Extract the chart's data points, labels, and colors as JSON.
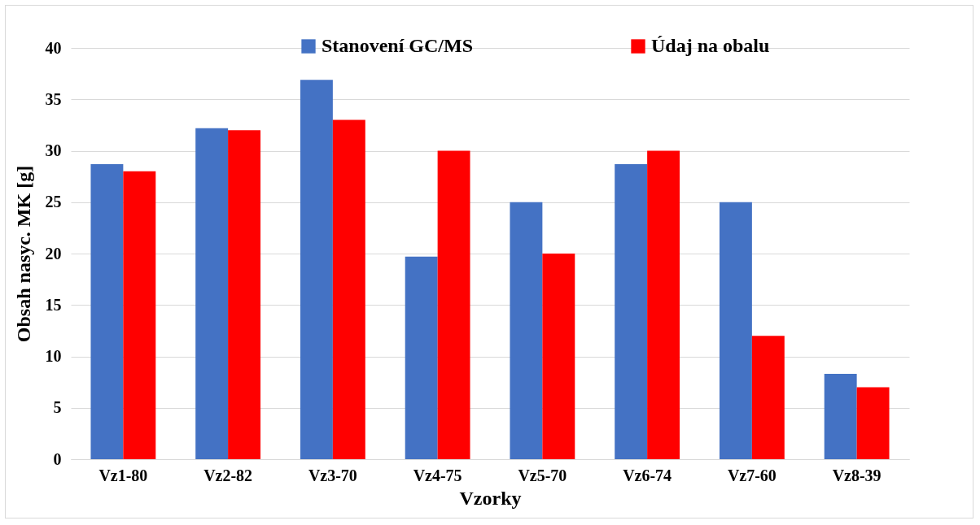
{
  "chart_data": {
    "type": "bar",
    "xlabel": "Vzorky",
    "ylabel": "Obsah nasyc. MK [g]",
    "categories": [
      "Vz1-80",
      "Vz2-82",
      "Vz3-70",
      "Vz4-75",
      "Vz5-70",
      "Vz6-74",
      "Vz7-60",
      "Vz8-39"
    ],
    "series": [
      {
        "name": "Stanovení GC/MS",
        "color": "#4472c4",
        "values": [
          28.7,
          32.2,
          36.9,
          19.7,
          25,
          28.7,
          25,
          8.3
        ]
      },
      {
        "name": "Údaj na obalu",
        "color": "#ff0000",
        "values": [
          28,
          32,
          33,
          30,
          20,
          30,
          12,
          7
        ]
      }
    ],
    "ylim": [
      0,
      40
    ],
    "yticks": [
      0,
      5,
      10,
      15,
      20,
      25,
      30,
      35,
      40
    ],
    "grid": "y",
    "legend": "top"
  }
}
